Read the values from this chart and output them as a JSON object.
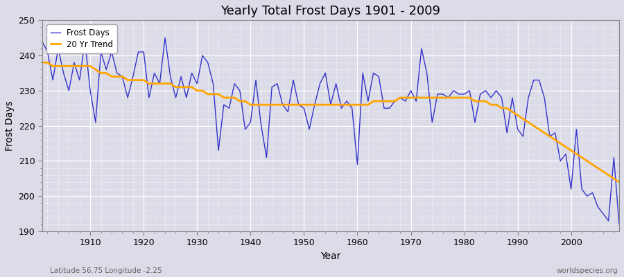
{
  "title": "Yearly Total Frost Days 1901 - 2009",
  "xlabel": "Year",
  "ylabel": "Frost Days",
  "subtitle_left": "Latitude 56.75 Longitude -2.25",
  "subtitle_right": "worldspecies.org",
  "line_color": "#3333cc",
  "trend_color": "#FFA500",
  "bg_color": "#dcdce8",
  "ylim": [
    190,
    250
  ],
  "xlim": [
    1901,
    2009
  ],
  "yticks": [
    190,
    200,
    210,
    220,
    230,
    240,
    250
  ],
  "xticks": [
    1910,
    1920,
    1930,
    1940,
    1950,
    1960,
    1970,
    1980,
    1990,
    2000
  ],
  "years": [
    1901,
    1902,
    1903,
    1904,
    1905,
    1906,
    1907,
    1908,
    1909,
    1910,
    1911,
    1912,
    1913,
    1914,
    1915,
    1916,
    1917,
    1918,
    1919,
    1920,
    1921,
    1922,
    1923,
    1924,
    1925,
    1926,
    1927,
    1928,
    1929,
    1930,
    1931,
    1932,
    1933,
    1934,
    1935,
    1936,
    1937,
    1938,
    1939,
    1940,
    1941,
    1942,
    1943,
    1944,
    1945,
    1946,
    1947,
    1948,
    1949,
    1950,
    1951,
    1952,
    1953,
    1954,
    1955,
    1956,
    1957,
    1958,
    1959,
    1960,
    1961,
    1962,
    1963,
    1964,
    1965,
    1966,
    1967,
    1968,
    1969,
    1970,
    1971,
    1972,
    1973,
    1974,
    1975,
    1976,
    1977,
    1978,
    1979,
    1980,
    1981,
    1982,
    1983,
    1984,
    1985,
    1986,
    1987,
    1988,
    1989,
    1990,
    1991,
    1992,
    1993,
    1994,
    1995,
    1996,
    1997,
    1998,
    1999,
    2000,
    2001,
    2002,
    2003,
    2004,
    2005,
    2006,
    2007,
    2008,
    2009
  ],
  "frost_days": [
    244,
    241,
    233,
    242,
    235,
    230,
    238,
    233,
    244,
    230,
    221,
    241,
    236,
    241,
    235,
    234,
    228,
    234,
    241,
    241,
    228,
    235,
    232,
    245,
    234,
    228,
    234,
    228,
    235,
    232,
    240,
    238,
    232,
    213,
    226,
    225,
    232,
    230,
    219,
    221,
    233,
    220,
    211,
    231,
    232,
    226,
    224,
    233,
    226,
    225,
    219,
    226,
    232,
    235,
    226,
    232,
    225,
    227,
    225,
    209,
    235,
    227,
    235,
    234,
    225,
    225,
    227,
    228,
    227,
    230,
    227,
    242,
    235,
    221,
    229,
    229,
    228,
    230,
    229,
    229,
    230,
    221,
    229,
    230,
    228,
    230,
    228,
    218,
    228,
    219,
    217,
    228,
    233,
    233,
    228,
    217,
    218,
    210,
    212,
    202,
    219,
    202,
    200,
    201,
    197,
    195,
    193,
    211,
    192
  ],
  "trend_years": [
    1901,
    1902,
    1903,
    1904,
    1905,
    1906,
    1907,
    1908,
    1909,
    1910,
    1911,
    1912,
    1913,
    1914,
    1915,
    1916,
    1917,
    1918,
    1919,
    1920,
    1921,
    1922,
    1923,
    1924,
    1925,
    1926,
    1927,
    1928,
    1929,
    1930,
    1931,
    1932,
    1933,
    1934,
    1935,
    1936,
    1937,
    1938,
    1939,
    1940,
    1941,
    1942,
    1943,
    1944,
    1945,
    1946,
    1947,
    1948,
    1949,
    1950,
    1951,
    1952,
    1953,
    1954,
    1955,
    1956,
    1957,
    1958,
    1959,
    1960,
    1961,
    1962,
    1963,
    1964,
    1965,
    1966,
    1967,
    1968,
    1969,
    1970,
    1971,
    1972,
    1973,
    1974,
    1975,
    1976,
    1977,
    1978,
    1979,
    1980,
    1981,
    1982,
    1983,
    1984,
    1985,
    1986,
    1987,
    1988,
    1989,
    1990,
    1991,
    1992,
    1993,
    1994,
    1995,
    1996,
    1997,
    1998,
    1999,
    2000,
    2001,
    2002,
    2003,
    2004,
    2005,
    2006,
    2007,
    2008,
    2009
  ],
  "trend_values": [
    238,
    238,
    237,
    237,
    237,
    237,
    237,
    237,
    237,
    237,
    236,
    235,
    235,
    234,
    234,
    234,
    233,
    233,
    233,
    233,
    232,
    232,
    232,
    232,
    232,
    231,
    231,
    231,
    231,
    230,
    230,
    229,
    229,
    229,
    228,
    228,
    228,
    227,
    227,
    226,
    226,
    226,
    226,
    226,
    226,
    226,
    226,
    226,
    226,
    226,
    226,
    226,
    226,
    226,
    226,
    226,
    226,
    226,
    226,
    226,
    226,
    226,
    227,
    227,
    227,
    227,
    227,
    228,
    228,
    228,
    228,
    228,
    228,
    228,
    228,
    228,
    228,
    228,
    228,
    228,
    228,
    227,
    227,
    227,
    226,
    226,
    225,
    225,
    224,
    223,
    222,
    221,
    220,
    219,
    218,
    217,
    216,
    215,
    214,
    213,
    212,
    211,
    210,
    209,
    208,
    207,
    206,
    205,
    204
  ]
}
